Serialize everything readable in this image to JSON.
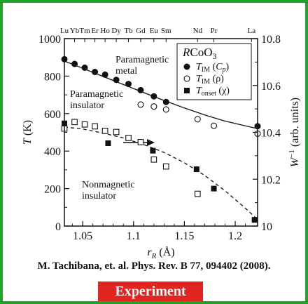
{
  "chart_data": {
    "type": "scatter",
    "x_axis": {
      "label": "r_R (Å)",
      "range": [
        1.032,
        1.222
      ],
      "ticks": [
        1.05,
        1.1,
        1.15,
        1.2
      ],
      "tick_labels": [
        "1.05",
        "1.1",
        "1.15",
        "1.2"
      ]
    },
    "y_axis_left": {
      "label": "T (K)",
      "range": [
        0,
        1000
      ],
      "ticks": [
        0,
        200,
        400,
        600,
        800,
        1000
      ],
      "tick_labels": [
        "0",
        "200",
        "400",
        "600",
        "800",
        "1000"
      ]
    },
    "y_axis_right": {
      "label": "W⁻¹ (arb. units)",
      "range": [
        10.0,
        10.8
      ],
      "ticks": [
        10.0,
        10.2,
        10.4,
        10.6,
        10.8
      ],
      "tick_labels": [
        "10",
        "10.2",
        "10.4",
        "10.6",
        "10.8"
      ]
    },
    "top_axis": {
      "labels": [
        {
          "text": "Lu",
          "x": 1.032
        },
        {
          "text": "Yb",
          "x": 1.042
        },
        {
          "text": "Tm",
          "x": 1.052
        },
        {
          "text": "Er",
          "x": 1.062
        },
        {
          "text": "Ho",
          "x": 1.072
        },
        {
          "text": "Dy",
          "x": 1.083
        },
        {
          "text": "Tb",
          "x": 1.095
        },
        {
          "text": "Gd",
          "x": 1.107
        },
        {
          "text": "Eu",
          "x": 1.12
        },
        {
          "text": "Sm",
          "x": 1.132
        },
        {
          "text": "Nd",
          "x": 1.163
        },
        {
          "text": "Pr",
          "x": 1.179
        },
        {
          "text": "La",
          "x": 1.216
        }
      ]
    },
    "series": [
      {
        "name": "T_IM (C_p)",
        "marker": "filled-circle",
        "x": [
          1.032,
          1.042,
          1.052,
          1.062,
          1.072,
          1.083,
          1.095,
          1.107,
          1.12,
          1.132,
          1.222
        ],
        "y": [
          890,
          865,
          845,
          822,
          808,
          780,
          758,
          725,
          692,
          662,
          533
        ]
      },
      {
        "name": "T_IM (ρ)",
        "marker": "open-circle",
        "x": [
          1.107,
          1.12,
          1.132,
          1.163,
          1.179,
          1.222
        ],
        "y": [
          648,
          638,
          622,
          570,
          535,
          493
        ]
      },
      {
        "name": "T_onset (χ)",
        "marker": "filled-square",
        "x": [
          1.032,
          1.075,
          1.119,
          1.162,
          1.179,
          1.219
        ],
        "y": [
          548,
          442,
          402,
          303,
          200,
          33
        ]
      },
      {
        "marker": "open-square",
        "x": [
          1.032,
          1.042,
          1.052,
          1.062,
          1.072,
          1.083,
          1.095,
          1.107,
          1.12,
          1.132,
          1.163
        ],
        "y": [
          520,
          555,
          542,
          532,
          508,
          502,
          470,
          448,
          355,
          318,
          172
        ]
      }
    ],
    "curves": [
      {
        "style": "solid",
        "x": [
          1.032,
          1.05,
          1.07,
          1.09,
          1.11,
          1.13,
          1.15,
          1.17,
          1.19,
          1.21,
          1.222
        ],
        "y": [
          880,
          842,
          798,
          755,
          712,
          670,
          630,
          593,
          560,
          535,
          520
        ]
      },
      {
        "style": "dashed",
        "x": [
          1.032,
          1.05,
          1.07,
          1.09,
          1.11,
          1.13,
          1.15,
          1.17,
          1.19,
          1.21,
          1.222
        ],
        "y": [
          528,
          518,
          496,
          470,
          435,
          393,
          338,
          270,
          188,
          95,
          35
        ]
      }
    ],
    "annotations": [
      {
        "lines": [
          "Paramagnetic",
          "metal"
        ]
      },
      {
        "lines": [
          "Paramagnetic",
          "insulator"
        ]
      },
      {
        "lines": [
          "Nonmagnetic",
          "insulator"
        ]
      }
    ],
    "legend": {
      "title": "RCoO3",
      "position": "top-right",
      "entries": [
        "T_IM (C_p)",
        "T_IM (ρ)",
        "T_onset (χ)"
      ]
    }
  },
  "citation": "M. Tachibana,  et. al. Phys. Rev. B 77, 094402 (2008).",
  "badge": "Experiment",
  "colors": {
    "frame": "#21a32a",
    "badge": "#e1241f",
    "ink": "#111111"
  }
}
